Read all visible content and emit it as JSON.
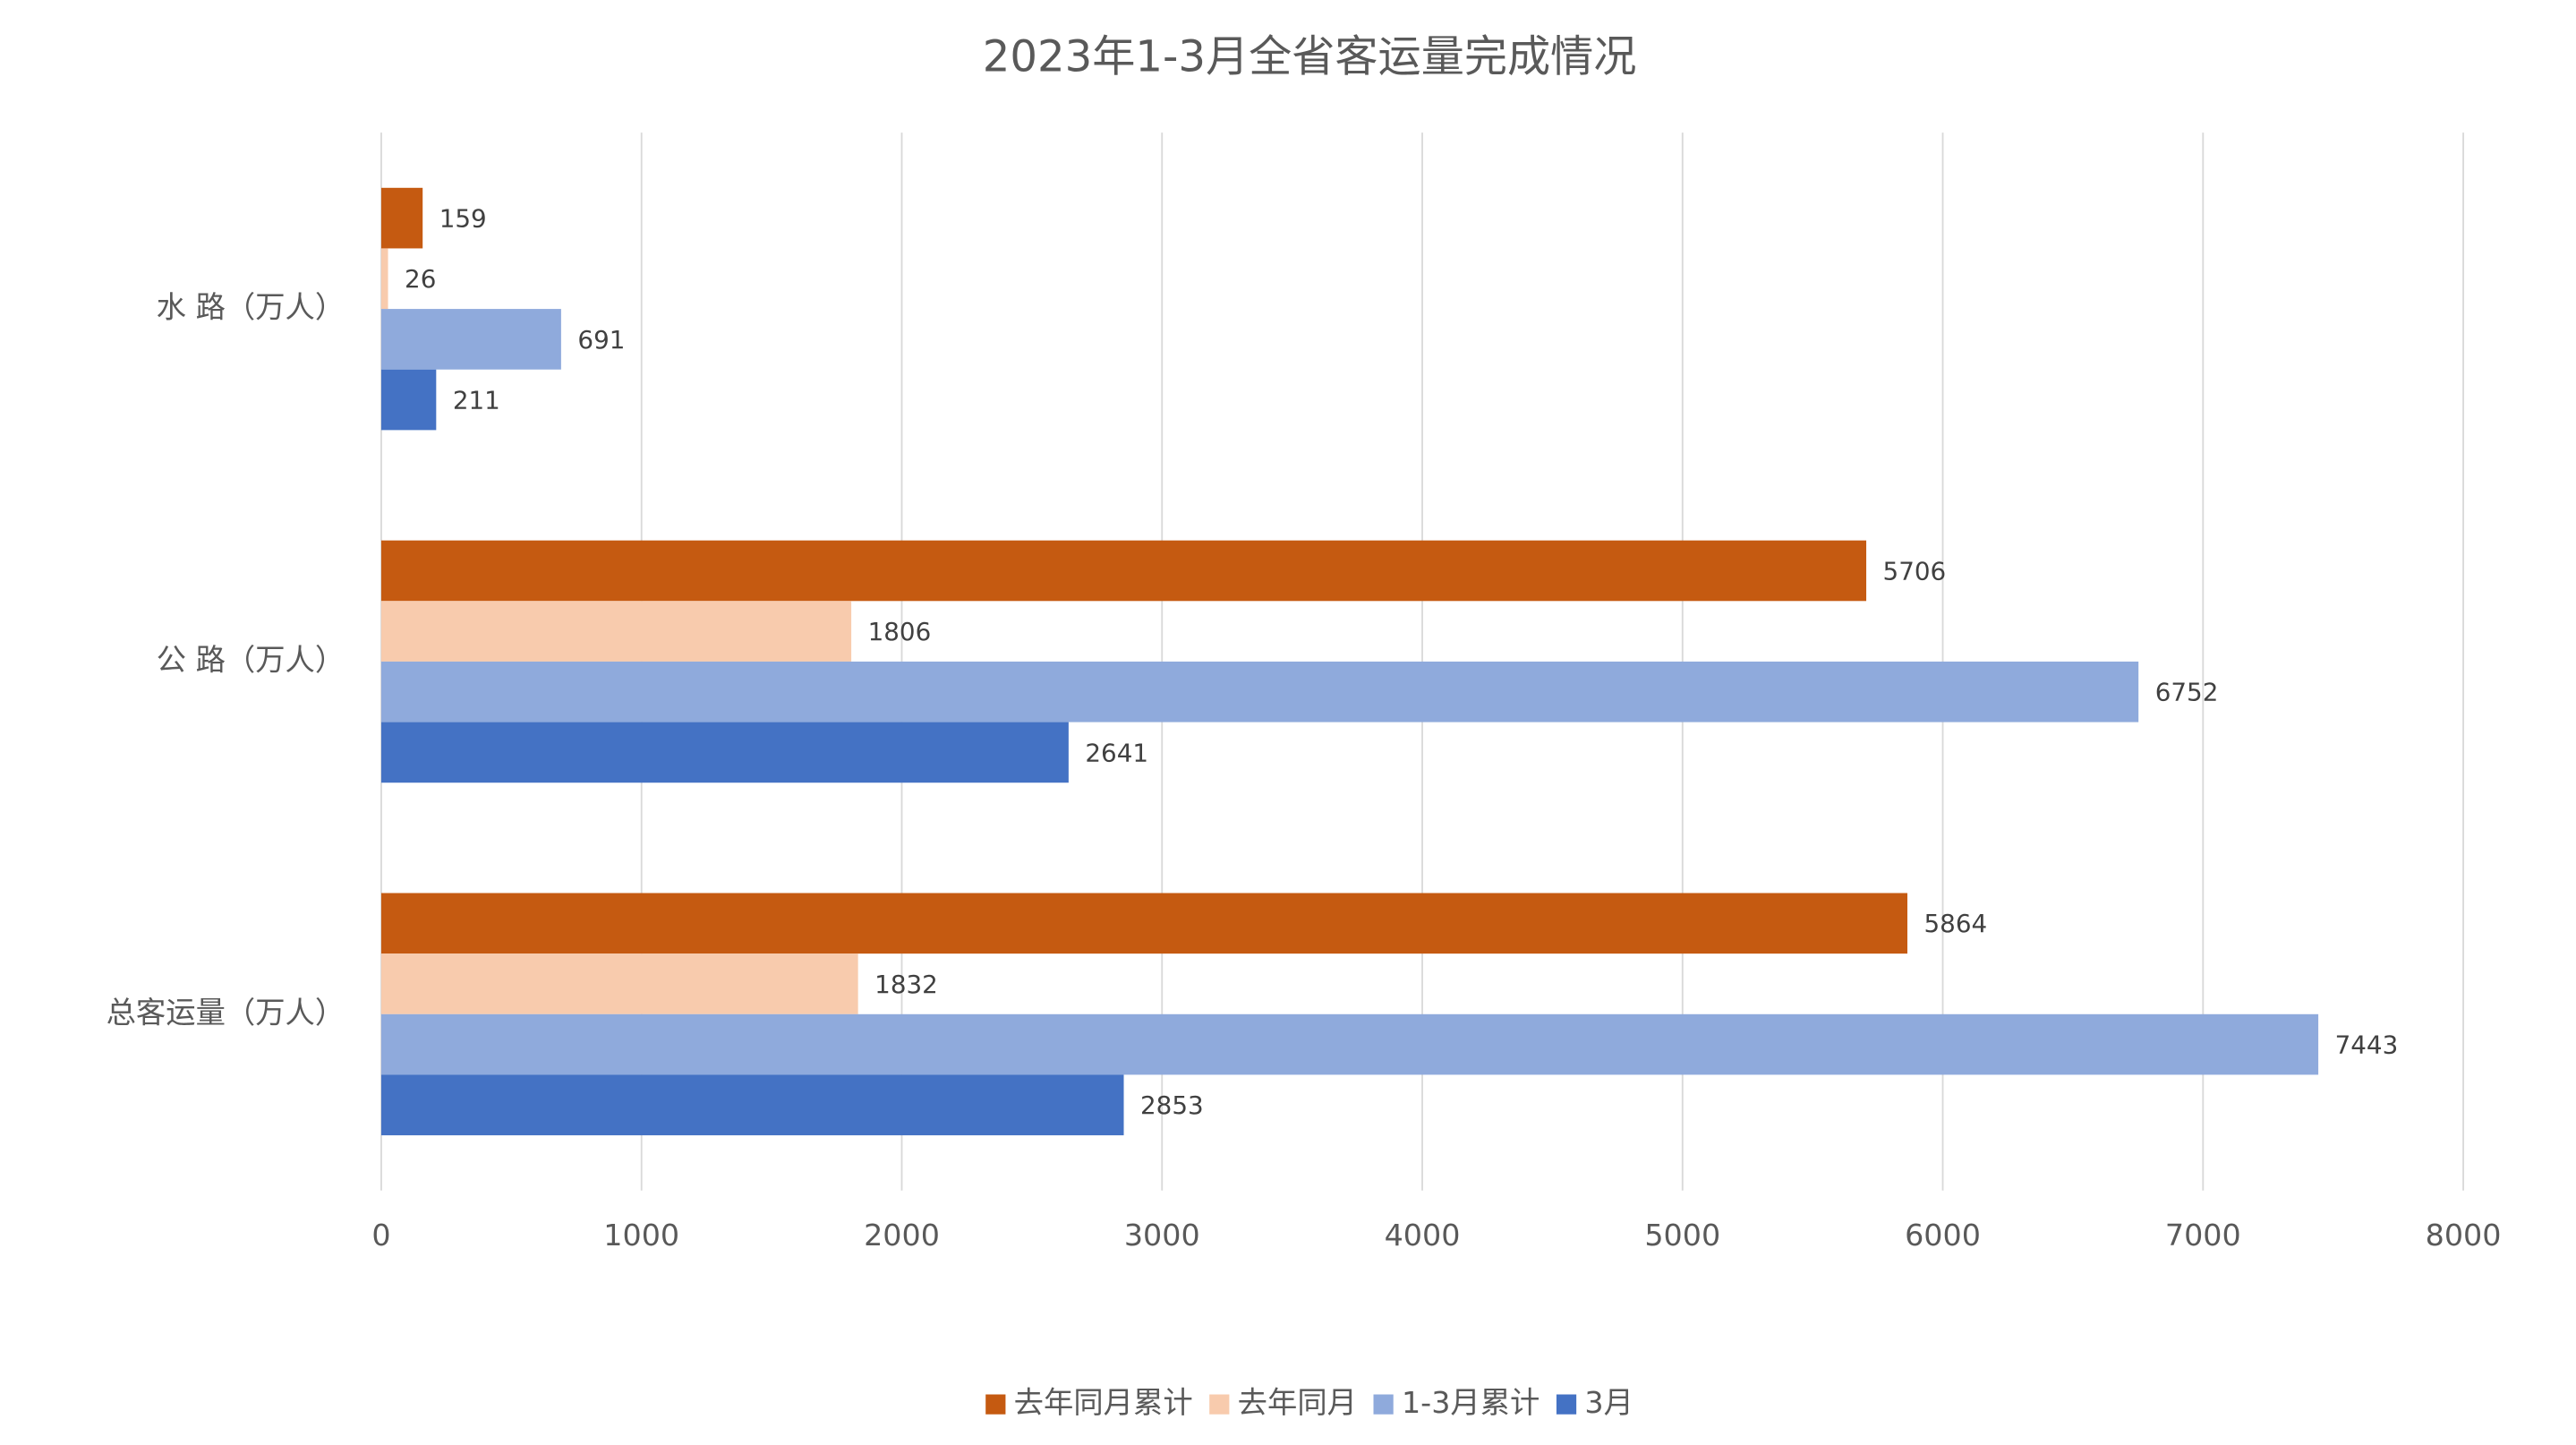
{
  "chart_data": {
    "type": "barh",
    "title": "2023年1-3月全省客运量完成情况",
    "categories": [
      "水 路（万人）",
      "公 路（万人）",
      "总客运量（万人）"
    ],
    "series": [
      {
        "name": "去年同月累计",
        "color": "#c55a11",
        "values": [
          159,
          5706,
          5864
        ]
      },
      {
        "name": "去年同月",
        "color": "#f8cbad",
        "values": [
          26,
          1806,
          1832
        ]
      },
      {
        "name": "1-3月累计",
        "color": "#8faadc",
        "values": [
          691,
          6752,
          7443
        ]
      },
      {
        "name": "3月",
        "color": "#4472c4",
        "values": [
          211,
          2641,
          2853
        ]
      }
    ],
    "xlim": [
      0,
      8000
    ],
    "xticks": [
      0,
      1000,
      2000,
      3000,
      4000,
      5000,
      6000,
      7000,
      8000
    ],
    "grid": true,
    "legend": "bottom"
  }
}
